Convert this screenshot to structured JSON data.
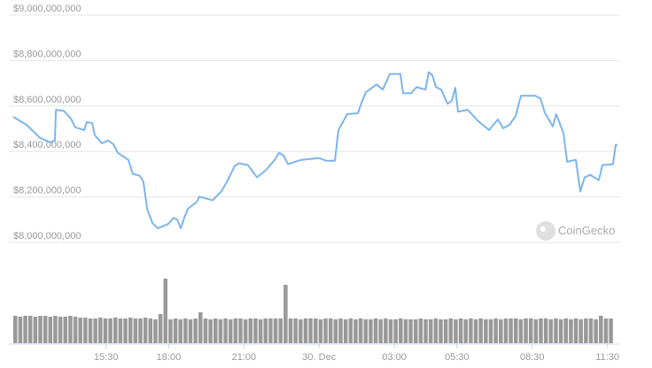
{
  "chart_data": {
    "type": "line",
    "x": [
      11.8,
      12.33,
      12.86,
      13.28,
      13.46,
      13.5,
      13.81,
      14.1,
      14.27,
      14.63,
      14.73,
      14.95,
      15.05,
      15.33,
      15.58,
      15.79,
      15.97,
      16.39,
      16.57,
      16.85,
      16.99,
      17.14,
      17.35,
      17.56,
      17.98,
      18.2,
      18.34,
      18.48,
      18.62,
      18.76,
      19.12,
      19.22,
      19.75,
      20.1,
      20.32,
      20.63,
      20.81,
      21.16,
      21.52,
      21.87,
      22.23,
      22.4,
      22.58,
      22.76,
      23.29,
      24.0,
      24.28,
      24.63,
      24.77,
      25.12,
      25.55,
      25.69,
      25.86,
      26.29,
      26.54,
      26.82,
      27.24,
      27.35,
      27.67,
      27.88,
      28.24,
      28.37,
      28.52,
      28.66,
      28.87,
      29.12,
      29.29,
      29.43,
      29.54,
      29.93,
      30.35,
      30.78,
      31.13,
      31.34,
      31.59,
      31.84,
      32.05,
      32.62,
      32.83,
      33.0,
      33.32,
      33.46,
      33.75,
      33.89,
      34.24,
      34.42,
      34.59,
      34.81,
      35.16,
      35.3,
      35.72,
      35.83,
      35.9
    ],
    "series": [
      {
        "color": "#7cb5ec",
        "values": [
          8552000000,
          8517000000,
          8460000000,
          8440000000,
          8448000000,
          8583000000,
          8579000000,
          8544000000,
          8506000000,
          8494000000,
          8529000000,
          8525000000,
          8471000000,
          8436000000,
          8448000000,
          8432000000,
          8394000000,
          8363000000,
          8301000000,
          8293000000,
          8266000000,
          8147000000,
          8085000000,
          8062000000,
          8081000000,
          8108000000,
          8100000000,
          8062000000,
          8108000000,
          8147000000,
          8178000000,
          8201000000,
          8185000000,
          8224000000,
          8266000000,
          8336000000,
          8348000000,
          8340000000,
          8286000000,
          8317000000,
          8363000000,
          8394000000,
          8382000000,
          8344000000,
          8363000000,
          8371000000,
          8359000000,
          8359000000,
          8494000000,
          8564000000,
          8568000000,
          8614000000,
          8660000000,
          8695000000,
          8672000000,
          8741000000,
          8741000000,
          8656000000,
          8656000000,
          8683000000,
          8672000000,
          8749000000,
          8734000000,
          8683000000,
          8672000000,
          8610000000,
          8622000000,
          8680000000,
          8575000000,
          8583000000,
          8533000000,
          8494000000,
          8541000000,
          8502000000,
          8517000000,
          8556000000,
          8645000000,
          8645000000,
          8633000000,
          8571000000,
          8510000000,
          8564000000,
          8479000000,
          8355000000,
          8363000000,
          8224000000,
          8286000000,
          8297000000,
          8274000000,
          8340000000,
          8344000000,
          8429000000,
          8429000000
        ]
      }
    ],
    "volume": {
      "type": "bar",
      "color": "#999999",
      "values": [
        31,
        30,
        31,
        31,
        30,
        31,
        31,
        30,
        31,
        30,
        30,
        31,
        30,
        29,
        29,
        28,
        28,
        29,
        28,
        28,
        29,
        28,
        28,
        29,
        28,
        28,
        29,
        28,
        27,
        33,
        73,
        27,
        28,
        27,
        28,
        27,
        28,
        35,
        28,
        27,
        28,
        27,
        28,
        27,
        28,
        28,
        27,
        28,
        28,
        27,
        28,
        28,
        28,
        28,
        66,
        28,
        28,
        27,
        28,
        28,
        28,
        27,
        28,
        28,
        27,
        28,
        27,
        28,
        27,
        28,
        27,
        27,
        28,
        27,
        28,
        27,
        27,
        28,
        27,
        27,
        27,
        28,
        27,
        27,
        28,
        27,
        27,
        28,
        27,
        28,
        27,
        28,
        27,
        28,
        27,
        27,
        28,
        27,
        28,
        28,
        28,
        27,
        28,
        28,
        27,
        28,
        28,
        27,
        28,
        27,
        28,
        27,
        28,
        27,
        28,
        28,
        27,
        31,
        28,
        28
      ]
    },
    "xlim": [
      11.8,
      35.9
    ],
    "xticks": [
      {
        "value": 15.5,
        "label": "15:30"
      },
      {
        "value": 18,
        "label": "18:00"
      },
      {
        "value": 21,
        "label": "21:00"
      },
      {
        "value": 24,
        "label": "30. Dec"
      },
      {
        "value": 27,
        "label": "03:00"
      },
      {
        "value": 29.5,
        "label": "05:30"
      },
      {
        "value": 32.5,
        "label": "08:30"
      },
      {
        "value": 35.5,
        "label": "11:30"
      }
    ],
    "ylim": [
      8000000000,
      9000000000
    ],
    "yticks": [
      {
        "value": 8000000000,
        "label": "$8,000,000,000"
      },
      {
        "value": 8200000000,
        "label": "$8,200,000,000"
      },
      {
        "value": 8400000000,
        "label": "$8,400,000,000"
      },
      {
        "value": 8600000000,
        "label": "$8,600,000,000"
      },
      {
        "value": 8800000000,
        "label": "$8,800,000,000"
      },
      {
        "value": 9000000000,
        "label": "$9,000,000,000"
      }
    ],
    "y2lim": [
      0,
      100
    ],
    "grid": true,
    "watermark": "CoinGecko"
  }
}
